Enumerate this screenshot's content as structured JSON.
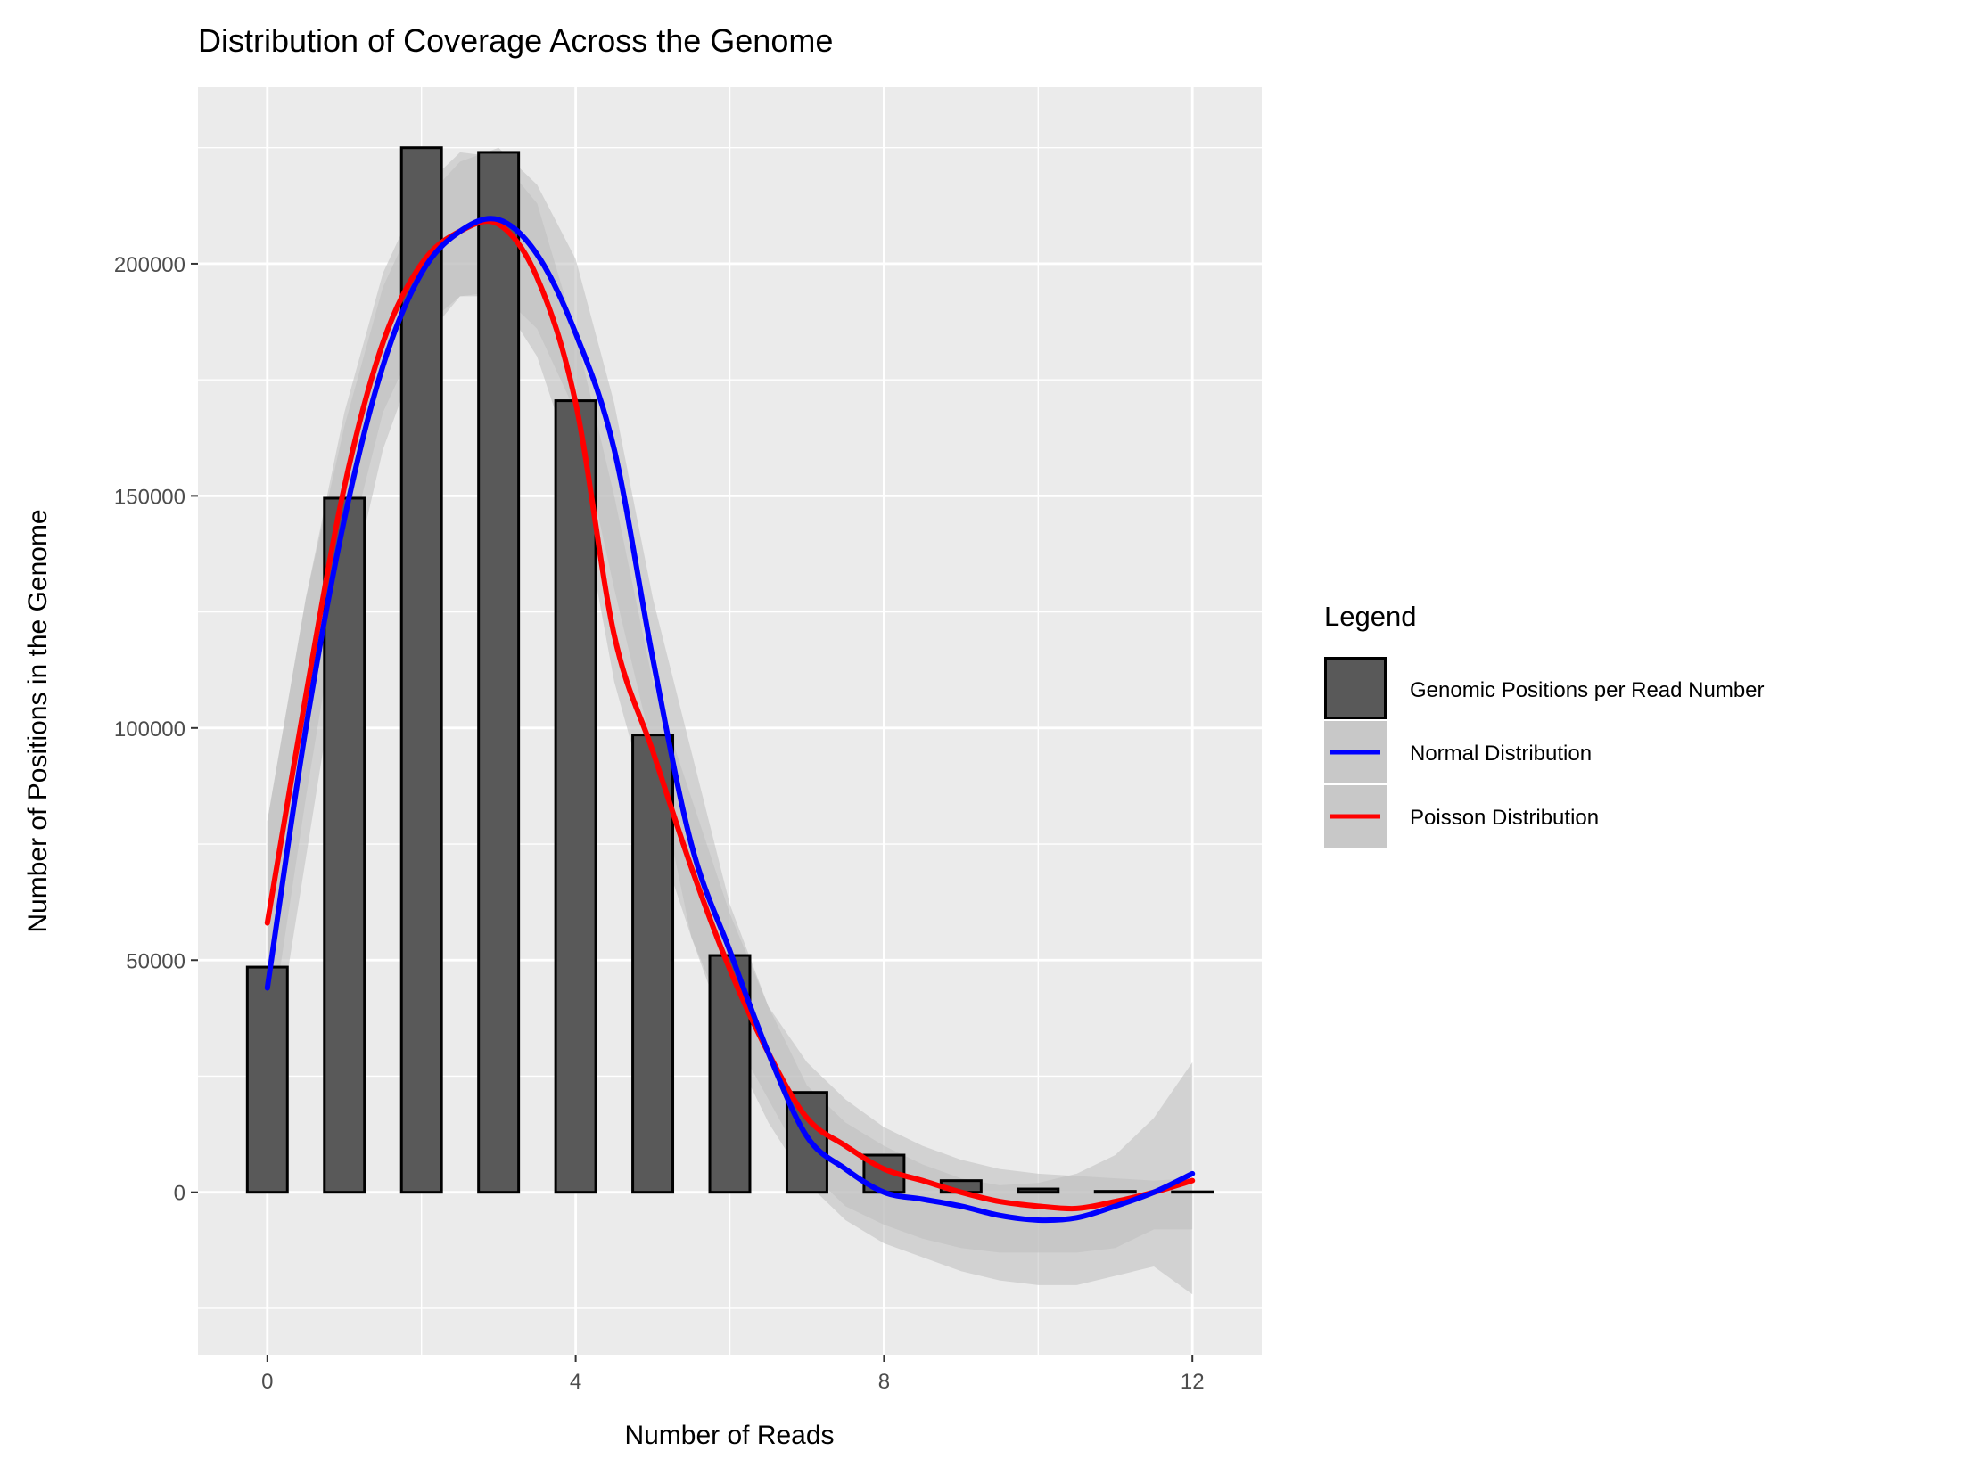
{
  "chart_data": {
    "type": "bar",
    "title": "Distribution of Coverage Across the Genome",
    "xlabel": "Number of Reads",
    "ylabel": "Number of Positions in the Genome",
    "xlim": [
      -0.9,
      12.9
    ],
    "ylim": [
      -35000,
      238000
    ],
    "x_ticks": [
      0,
      4,
      8,
      12
    ],
    "y_ticks": [
      0,
      50000,
      100000,
      150000,
      200000
    ],
    "y_tick_labels": [
      "0",
      "50000",
      "100000",
      "150000",
      "200000"
    ],
    "x_tick_labels": [
      "0",
      "4",
      "8",
      "12"
    ],
    "grid": true,
    "legend_position": "right",
    "legend": {
      "title": "Legend",
      "entries": [
        {
          "label": "Genomic Positions per Read Number",
          "kind": "bar",
          "color": "#595959"
        },
        {
          "label": "Normal Distribution",
          "kind": "line",
          "color": "#0000ff"
        },
        {
          "label": "Poisson Distribution",
          "kind": "line",
          "color": "#ff0000"
        }
      ]
    },
    "bars": {
      "name": "Genomic Positions per Read Number",
      "x": [
        0,
        1,
        2,
        3,
        4,
        5,
        6,
        7,
        8,
        9,
        10,
        11,
        12
      ],
      "values": [
        48500,
        149500,
        225000,
        224000,
        170500,
        98500,
        51000,
        21500,
        8000,
        2500,
        700,
        200,
        100
      ]
    },
    "series": [
      {
        "name": "Normal Distribution",
        "color": "#0000ff",
        "x": [
          0,
          0.5,
          1,
          1.5,
          2,
          2.5,
          3,
          3.5,
          4,
          4.5,
          5,
          5.5,
          6,
          6.5,
          7,
          7.5,
          8,
          8.5,
          9,
          9.5,
          10,
          10.5,
          11,
          11.5,
          12
        ],
        "y": [
          44000,
          100000,
          145000,
          178000,
          198000,
          207000,
          209500,
          202000,
          185000,
          160000,
          115000,
          75000,
          52000,
          30000,
          12000,
          5000,
          0,
          -1500,
          -3000,
          -5000,
          -6000,
          -5500,
          -3000,
          0,
          4000
        ],
        "ci_upper": [
          80000,
          128000,
          165000,
          195000,
          213000,
          222000,
          225000,
          217000,
          201000,
          170000,
          128000,
          95000,
          62000,
          40000,
          23000,
          15000,
          10000,
          6000,
          3000,
          1500,
          2000,
          4000,
          8000,
          16000,
          28000
        ],
        "ci_lower": [
          20000,
          72000,
          124000,
          160000,
          183000,
          193000,
          194000,
          186000,
          168000,
          130000,
          95000,
          55000,
          32000,
          15000,
          2000,
          -6000,
          -11000,
          -14000,
          -17000,
          -19000,
          -20000,
          -20000,
          -18000,
          -16000,
          -22000
        ]
      },
      {
        "name": "Poisson Distribution",
        "color": "#ff0000",
        "x": [
          0,
          0.5,
          1,
          1.5,
          2,
          2.5,
          3,
          3.5,
          4,
          4.5,
          5,
          5.5,
          6,
          6.5,
          7,
          7.5,
          8,
          8.5,
          9,
          9.5,
          10,
          10.5,
          11,
          11.5,
          12
        ],
        "y": [
          58000,
          107000,
          152000,
          183000,
          200000,
          207000,
          208500,
          197000,
          170000,
          120000,
          95000,
          70000,
          48000,
          30000,
          16000,
          10000,
          5000,
          2500,
          0,
          -2000,
          -3000,
          -3500,
          -2000,
          0,
          2500
        ],
        "ci_upper": [
          80000,
          128000,
          168000,
          198000,
          216000,
          224000,
          223000,
          213000,
          185000,
          150000,
          110000,
          85000,
          60000,
          40000,
          28000,
          20000,
          14000,
          10000,
          7000,
          5000,
          4000,
          3500,
          3000,
          2500,
          3000
        ],
        "ci_lower": [
          30000,
          85000,
          135000,
          168000,
          186000,
          193000,
          193000,
          180000,
          155000,
          110000,
          80000,
          55000,
          35000,
          20000,
          5000,
          -3000,
          -7000,
          -10000,
          -12000,
          -13000,
          -13000,
          -13000,
          -12000,
          -8000,
          -8000
        ]
      }
    ],
    "colors": {
      "panel_background": "#ebebeb",
      "grid": "#ffffff",
      "bar_fill": "#595959",
      "bar_outline": "#000000",
      "ci_band": "#bebebe"
    }
  }
}
